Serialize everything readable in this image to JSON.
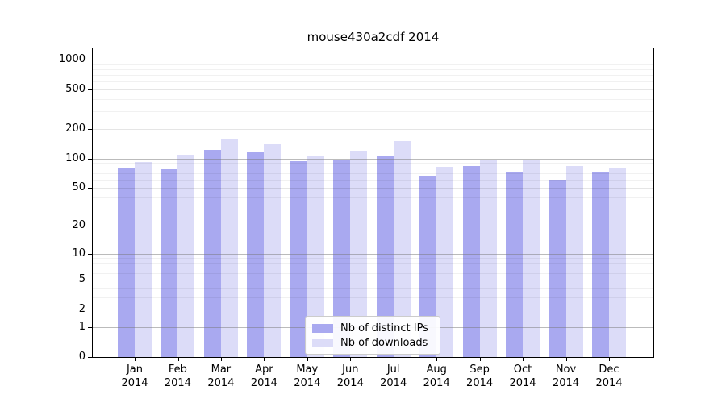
{
  "chart_data": {
    "type": "bar",
    "title": "mouse430a2cdf 2014",
    "categories": [
      "Jan",
      "Feb",
      "Mar",
      "Apr",
      "May",
      "Jun",
      "Jul",
      "Aug",
      "Sep",
      "Oct",
      "Nov",
      "Dec"
    ],
    "x_tick_year": "2014",
    "series": [
      {
        "name": "Nb of distinct IPs",
        "color": "#a9a9f0",
        "values": [
          81,
          77,
          122,
          116,
          94,
          97,
          107,
          67,
          84,
          73,
          61,
          72
        ]
      },
      {
        "name": "Nb of downloads",
        "color": "#dcdcf8",
        "values": [
          92,
          108,
          157,
          140,
          105,
          120,
          151,
          82,
          97,
          95,
          84,
          81
        ]
      }
    ],
    "yticks": [
      0,
      1,
      2,
      5,
      10,
      20,
      50,
      100,
      200,
      500,
      1000
    ],
    "ylim": [
      0,
      1330
    ],
    "xlabel": "",
    "ylabel": "",
    "scale": "log1p",
    "grid": true,
    "legend_position": "lower center"
  },
  "colors": {
    "axis": "#000000",
    "bar_distinct_ips": "#a9a9f0",
    "bar_downloads": "#dcdcf8",
    "legend_border": "#cccccc"
  }
}
